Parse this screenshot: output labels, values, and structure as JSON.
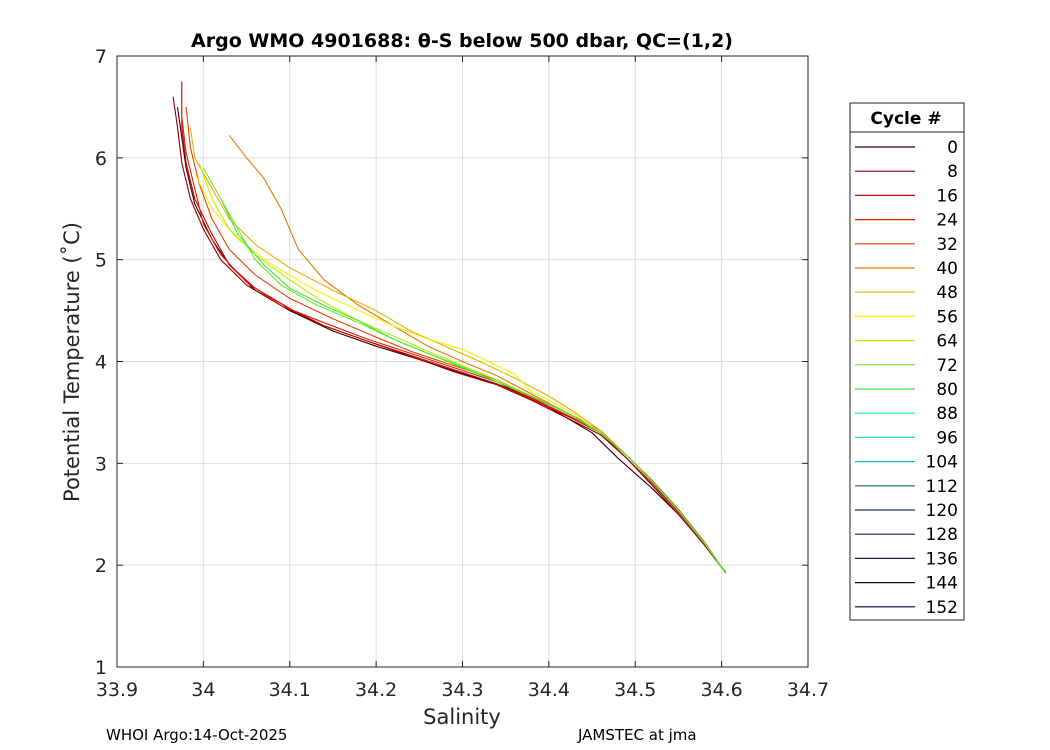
{
  "chart_data": {
    "type": "line",
    "title": "Argo WMO 4901688: θ-S below 500 dbar,  QC=(1,2)",
    "xlabel": "Salinity",
    "ylabel": "Potential Temperature (˚C)",
    "xlim": [
      33.9,
      34.7
    ],
    "ylim": [
      1,
      7
    ],
    "xticks": [
      "33.9",
      "34",
      "34.1",
      "34.2",
      "34.3",
      "34.4",
      "34.5",
      "34.6",
      "34.7"
    ],
    "yticks": [
      "1",
      "2",
      "3",
      "4",
      "5",
      "6",
      "7"
    ],
    "grid": true,
    "legend": {
      "title": "Cycle #",
      "placement": "right-outside",
      "entries": [
        "0",
        "8",
        "16",
        "24",
        "32",
        "40",
        "48",
        "56",
        "64",
        "72",
        "80",
        "88",
        "96",
        "104",
        "112",
        "120",
        "128",
        "136",
        "144",
        "152"
      ],
      "colors": [
        "#3a0000",
        "#8b0000",
        "#cc0000",
        "#e02000",
        "#e84000",
        "#e87800",
        "#e8b000",
        "#f5f000",
        "#b8f000",
        "#70e828",
        "#40e840",
        "#20e8a0",
        "#20e0d0",
        "#10b8c8",
        "#106878",
        "#203070",
        "#20205a",
        "#181850",
        "#100830",
        "#000040"
      ]
    },
    "series": [
      {
        "name": "0",
        "color": "#3a0000",
        "x": [
          34.605,
          34.58,
          34.55,
          34.52,
          34.48,
          34.45,
          34.42,
          34.39,
          34.35,
          34.3,
          34.25,
          34.2,
          34.15,
          34.1,
          34.06,
          34.03,
          34.01,
          33.99,
          33.98,
          33.975,
          33.97
        ],
        "y": [
          1.92,
          2.2,
          2.5,
          2.75,
          3.05,
          3.3,
          3.45,
          3.6,
          3.75,
          3.88,
          4.02,
          4.15,
          4.3,
          4.5,
          4.7,
          4.95,
          5.2,
          5.55,
          5.9,
          6.2,
          6.5
        ]
      },
      {
        "name": "8",
        "color": "#8b0000",
        "x": [
          34.605,
          34.58,
          34.55,
          34.52,
          34.49,
          34.46,
          34.42,
          34.38,
          34.34,
          34.29,
          34.24,
          34.19,
          34.14,
          34.09,
          34.05,
          34.02,
          34.0,
          33.985,
          33.975,
          33.97,
          33.965
        ],
        "y": [
          1.93,
          2.2,
          2.5,
          2.78,
          3.05,
          3.28,
          3.45,
          3.62,
          3.77,
          3.9,
          4.05,
          4.2,
          4.35,
          4.55,
          4.75,
          5.0,
          5.3,
          5.6,
          5.95,
          6.3,
          6.6
        ]
      },
      {
        "name": "16",
        "color": "#cc0000",
        "x": [
          34.605,
          34.58,
          34.55,
          34.52,
          34.49,
          34.46,
          34.42,
          34.38,
          34.34,
          34.29,
          34.24,
          34.19,
          34.14,
          34.1,
          34.06,
          34.03,
          34.01,
          33.99,
          33.98,
          33.975,
          33.975
        ],
        "y": [
          1.92,
          2.22,
          2.52,
          2.8,
          3.05,
          3.3,
          3.47,
          3.63,
          3.78,
          3.92,
          4.06,
          4.2,
          4.35,
          4.52,
          4.72,
          4.95,
          5.25,
          5.6,
          5.95,
          6.3,
          6.75
        ]
      },
      {
        "name": "24",
        "color": "#e02000",
        "x": [
          34.605,
          34.58,
          34.55,
          34.52,
          34.49,
          34.46,
          34.42,
          34.38,
          34.34,
          34.29,
          34.24,
          34.19,
          34.14,
          34.09,
          34.05,
          34.02,
          34.0,
          33.99,
          33.98,
          33.975
        ],
        "y": [
          1.92,
          2.22,
          2.55,
          2.82,
          3.08,
          3.3,
          3.48,
          3.64,
          3.8,
          3.94,
          4.08,
          4.22,
          4.38,
          4.55,
          4.78,
          5.05,
          5.35,
          5.7,
          6.05,
          6.4
        ]
      },
      {
        "name": "32",
        "color": "#e84000",
        "x": [
          34.605,
          34.58,
          34.55,
          34.52,
          34.49,
          34.46,
          34.42,
          34.38,
          34.34,
          34.29,
          34.24,
          34.2,
          34.15,
          34.1,
          34.06,
          34.03,
          34.01,
          33.995,
          33.985,
          33.98
        ],
        "y": [
          1.92,
          2.23,
          2.55,
          2.83,
          3.08,
          3.32,
          3.5,
          3.65,
          3.82,
          3.96,
          4.1,
          4.24,
          4.42,
          4.62,
          4.85,
          5.1,
          5.4,
          5.75,
          6.1,
          6.5
        ]
      },
      {
        "name": "40",
        "color": "#e87800",
        "x": [
          34.605,
          34.58,
          34.55,
          34.52,
          34.49,
          34.46,
          34.42,
          34.38,
          34.34,
          34.3,
          34.26,
          34.22,
          34.18,
          34.14,
          34.11,
          34.09,
          34.07,
          34.05,
          34.03
        ],
        "y": [
          1.92,
          2.22,
          2.54,
          2.82,
          3.08,
          3.3,
          3.5,
          3.68,
          3.86,
          4.0,
          4.15,
          4.35,
          4.55,
          4.8,
          5.1,
          5.5,
          5.8,
          6.0,
          6.22
        ]
      },
      {
        "name": "48",
        "color": "#e8b000",
        "x": [
          34.605,
          34.58,
          34.55,
          34.52,
          34.49,
          34.46,
          34.43,
          34.4,
          34.36,
          34.32,
          34.28,
          34.24,
          34.2,
          34.15,
          34.1,
          34.06,
          34.03,
          34.01,
          33.99,
          33.985
        ],
        "y": [
          1.92,
          2.22,
          2.54,
          2.82,
          3.08,
          3.32,
          3.5,
          3.66,
          3.84,
          4.0,
          4.15,
          4.3,
          4.5,
          4.7,
          4.92,
          5.15,
          5.4,
          5.7,
          6.0,
          6.3
        ]
      },
      {
        "name": "56",
        "color": "#f5f000",
        "x": [
          34.605,
          34.58,
          34.55,
          34.52,
          34.49,
          34.46,
          34.43,
          34.4,
          34.38,
          34.36,
          34.33,
          34.3,
          34.26,
          34.22,
          34.18,
          34.13,
          34.08,
          34.04,
          34.01,
          33.99
        ],
        "y": [
          1.92,
          2.22,
          2.54,
          2.82,
          3.08,
          3.3,
          3.48,
          3.62,
          3.7,
          3.88,
          4.0,
          4.12,
          4.22,
          4.35,
          4.5,
          4.7,
          4.95,
          5.2,
          5.5,
          5.85
        ]
      },
      {
        "name": "64",
        "color": "#b8f000",
        "x": [
          34.605,
          34.58,
          34.55,
          34.52,
          34.49,
          34.46,
          34.42,
          34.38,
          34.34,
          34.3,
          34.26,
          34.22,
          34.18,
          34.14,
          34.1,
          34.06,
          34.03,
          34.01,
          33.995
        ],
        "y": [
          1.92,
          2.22,
          2.54,
          2.82,
          3.08,
          3.3,
          3.5,
          3.66,
          3.82,
          3.96,
          4.1,
          4.25,
          4.4,
          4.58,
          4.8,
          5.05,
          5.3,
          5.6,
          5.95
        ]
      },
      {
        "name": "72",
        "color": "#70e828",
        "x": [
          34.605,
          34.58,
          34.55,
          34.52,
          34.49,
          34.46,
          34.42,
          34.38,
          34.34,
          34.3,
          34.26,
          34.22,
          34.18,
          34.13,
          34.09,
          34.06,
          34.04,
          34.02,
          34.0
        ],
        "y": [
          1.92,
          2.22,
          2.54,
          2.82,
          3.08,
          3.3,
          3.5,
          3.66,
          3.8,
          3.95,
          4.08,
          4.22,
          4.38,
          4.56,
          4.75,
          5.0,
          5.3,
          5.6,
          5.9
        ]
      },
      {
        "name": "80",
        "color": "#40e840",
        "x": [
          34.605,
          34.58,
          34.55,
          34.52,
          34.49,
          34.46,
          34.42,
          34.38,
          34.34,
          34.3,
          34.26,
          34.22,
          34.18,
          34.14,
          34.1,
          34.07,
          34.04,
          34.02
        ],
        "y": [
          1.92,
          2.22,
          2.54,
          2.82,
          3.08,
          3.3,
          3.5,
          3.66,
          3.8,
          3.94,
          4.08,
          4.22,
          4.4,
          4.55,
          4.72,
          4.95,
          5.25,
          5.6
        ]
      }
    ]
  },
  "footer": {
    "left": "WHOI Argo:14-Oct-2025",
    "right": "JAMSTEC at jma"
  }
}
